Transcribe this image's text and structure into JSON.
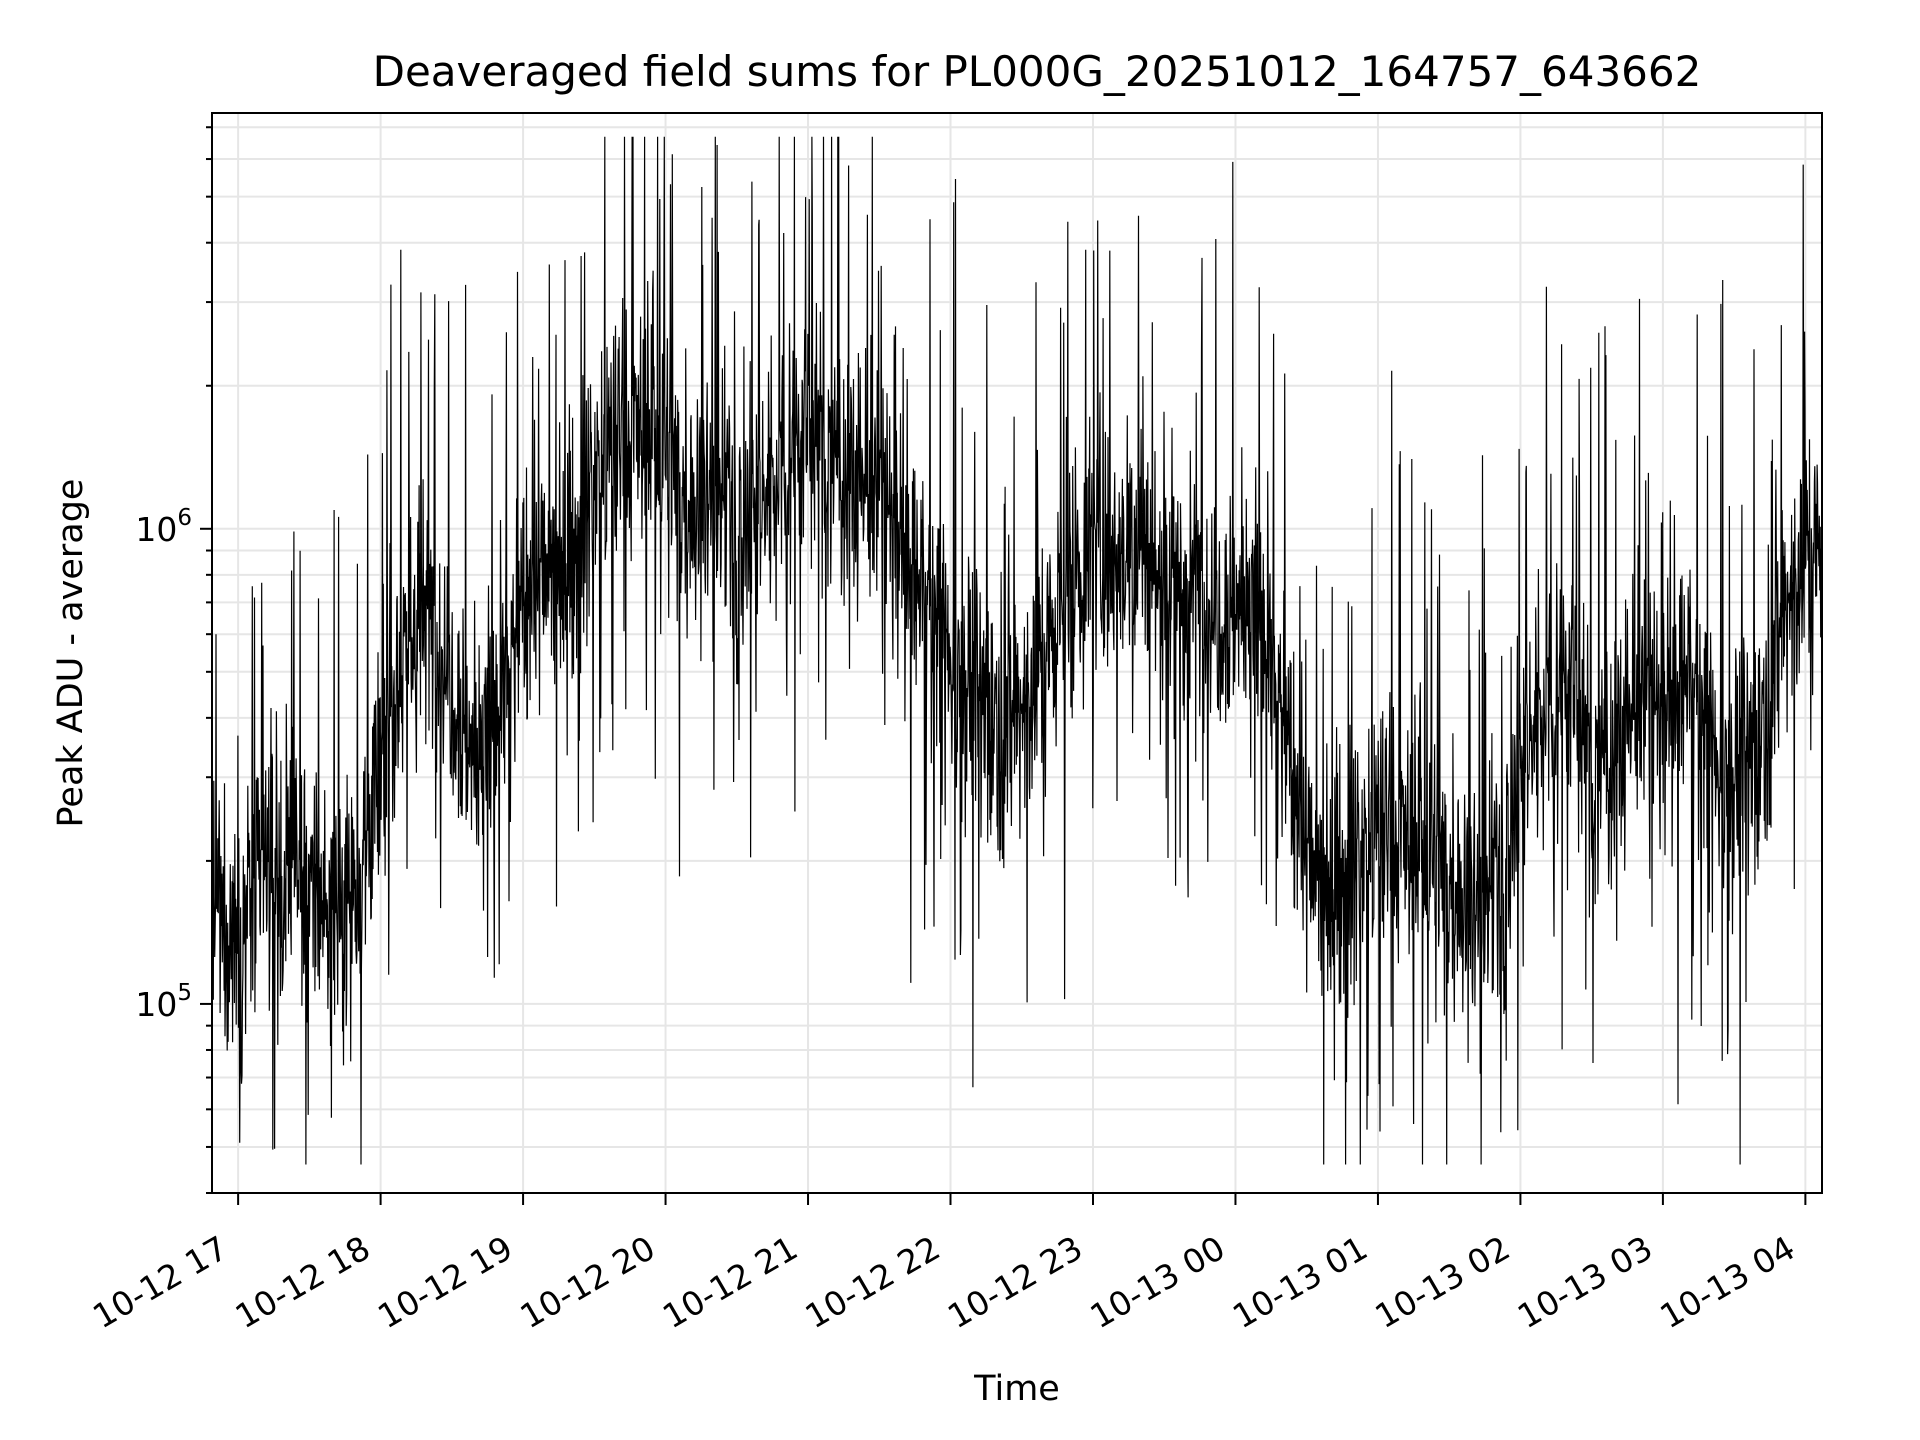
{
  "chart_data": {
    "type": "line",
    "title": "Deaveraged field sums for PL000G_20251012_164757_643662",
    "xlabel": "Time",
    "ylabel": "Peak ADU - average",
    "y_scale": "log",
    "ylim": [
      40000,
      7500000
    ],
    "xlim": [
      "2025-10-12 16:49",
      "2025-10-13 04:07"
    ],
    "grid": true,
    "line_color": "#000000",
    "grid_color": "#e6e6e6",
    "x_ticks": [
      {
        "value": "2025-10-12 17:00",
        "label": "10-12 17"
      },
      {
        "value": "2025-10-12 18:00",
        "label": "10-12 18"
      },
      {
        "value": "2025-10-12 19:00",
        "label": "10-12 19"
      },
      {
        "value": "2025-10-12 20:00",
        "label": "10-12 20"
      },
      {
        "value": "2025-10-12 21:00",
        "label": "10-12 21"
      },
      {
        "value": "2025-10-12 22:00",
        "label": "10-12 22"
      },
      {
        "value": "2025-10-12 23:00",
        "label": "10-12 23"
      },
      {
        "value": "2025-10-13 00:00",
        "label": "10-13 00"
      },
      {
        "value": "2025-10-13 01:00",
        "label": "10-13 01"
      },
      {
        "value": "2025-10-13 02:00",
        "label": "10-13 02"
      },
      {
        "value": "2025-10-13 03:00",
        "label": "10-13 03"
      },
      {
        "value": "2025-10-13 04:00",
        "label": "10-13 04"
      }
    ],
    "y_ticks": [
      {
        "value": 100000,
        "base": "10",
        "exp": "5"
      },
      {
        "value": 1000000,
        "base": "10",
        "exp": "6"
      }
    ],
    "series": [
      {
        "values": [
          [
            "2025-10-12 16:49",
            150000
          ],
          [
            "2025-10-12 17:00",
            140000
          ],
          [
            "2025-10-12 17:10",
            180000
          ],
          [
            "2025-10-12 17:20",
            190000
          ],
          [
            "2025-10-12 17:30",
            170000
          ],
          [
            "2025-10-12 17:40",
            160000
          ],
          [
            "2025-10-12 17:50",
            180000
          ],
          [
            "2025-10-12 18:00",
            300000
          ],
          [
            "2025-10-12 18:10",
            600000
          ],
          [
            "2025-10-12 18:20",
            650000
          ],
          [
            "2025-10-12 18:30",
            500000
          ],
          [
            "2025-10-12 18:40",
            320000
          ],
          [
            "2025-10-12 18:50",
            420000
          ],
          [
            "2025-10-12 19:00",
            700000
          ],
          [
            "2025-10-12 19:10",
            800000
          ],
          [
            "2025-10-12 19:20",
            850000
          ],
          [
            "2025-10-12 19:30",
            1300000
          ],
          [
            "2025-10-12 19:40",
            1500000
          ],
          [
            "2025-10-12 19:50",
            1600000
          ],
          [
            "2025-10-12 20:00",
            1400000
          ],
          [
            "2025-10-12 20:10",
            1100000
          ],
          [
            "2025-10-12 20:20",
            1200000
          ],
          [
            "2025-10-12 20:30",
            1000000
          ],
          [
            "2025-10-12 20:40",
            1100000
          ],
          [
            "2025-10-12 20:50",
            1500000
          ],
          [
            "2025-10-12 21:00",
            1600000
          ],
          [
            "2025-10-12 21:10",
            1400000
          ],
          [
            "2025-10-12 21:20",
            1300000
          ],
          [
            "2025-10-12 21:30",
            1200000
          ],
          [
            "2025-10-12 21:40",
            900000
          ],
          [
            "2025-10-12 21:50",
            700000
          ],
          [
            "2025-10-12 22:00",
            550000
          ],
          [
            "2025-10-12 22:10",
            450000
          ],
          [
            "2025-10-12 22:20",
            400000
          ],
          [
            "2025-10-12 22:30",
            420000
          ],
          [
            "2025-10-12 22:40",
            550000
          ],
          [
            "2025-10-12 22:50",
            750000
          ],
          [
            "2025-10-12 23:00",
            900000
          ],
          [
            "2025-10-12 23:10",
            950000
          ],
          [
            "2025-10-12 23:20",
            900000
          ],
          [
            "2025-10-12 23:30",
            800000
          ],
          [
            "2025-10-12 23:40",
            750000
          ],
          [
            "2025-10-12 23:50",
            700000
          ],
          [
            "2025-10-13 00:00",
            700000
          ],
          [
            "2025-10-13 00:10",
            650000
          ],
          [
            "2025-10-13 00:20",
            400000
          ],
          [
            "2025-10-13 00:30",
            200000
          ],
          [
            "2025-10-13 00:40",
            170000
          ],
          [
            "2025-10-13 00:50",
            200000
          ],
          [
            "2025-10-13 01:00",
            230000
          ],
          [
            "2025-10-13 01:10",
            220000
          ],
          [
            "2025-10-13 01:20",
            200000
          ],
          [
            "2025-10-13 01:30",
            180000
          ],
          [
            "2025-10-13 01:40",
            160000
          ],
          [
            "2025-10-13 01:50",
            170000
          ],
          [
            "2025-10-13 02:00",
            300000
          ],
          [
            "2025-10-13 02:10",
            450000
          ],
          [
            "2025-10-13 02:20",
            500000
          ],
          [
            "2025-10-13 02:30",
            300000
          ],
          [
            "2025-10-13 02:40",
            350000
          ],
          [
            "2025-10-13 02:50",
            450000
          ],
          [
            "2025-10-13 03:00",
            400000
          ],
          [
            "2025-10-13 03:10",
            500000
          ],
          [
            "2025-10-13 03:20",
            350000
          ],
          [
            "2025-10-13 03:30",
            300000
          ],
          [
            "2025-10-13 03:40",
            350000
          ],
          [
            "2025-10-13 03:50",
            650000
          ],
          [
            "2025-10-13 04:00",
            900000
          ],
          [
            "2025-10-13 04:07",
            900000
          ]
        ]
      }
    ]
  }
}
